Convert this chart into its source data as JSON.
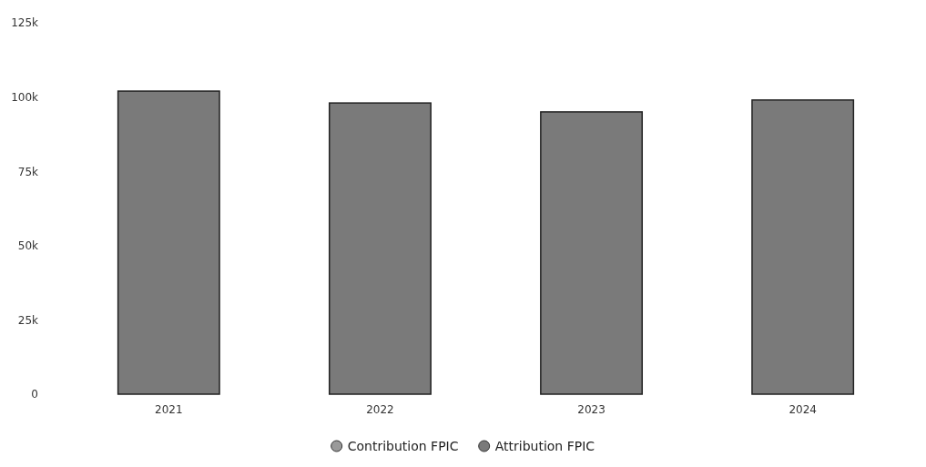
{
  "chart_data": {
    "type": "bar",
    "categories": [
      "2021",
      "2022",
      "2023",
      "2024"
    ],
    "series": [
      {
        "name": "Contribution FPIC",
        "color": "#9a9a9a",
        "values": [
          null,
          null,
          null,
          null
        ]
      },
      {
        "name": "Attribution FPIC",
        "color": "#7a7a7a",
        "values": [
          102000,
          98000,
          95000,
          99000
        ]
      }
    ],
    "ylim": [
      0,
      125000
    ],
    "yticks": [
      {
        "value": 0,
        "label": "0"
      },
      {
        "value": 25000,
        "label": "25k"
      },
      {
        "value": 50000,
        "label": "50k"
      },
      {
        "value": 75000,
        "label": "75k"
      },
      {
        "value": 100000,
        "label": "100k"
      },
      {
        "value": 125000,
        "label": "125k"
      }
    ],
    "grid": false,
    "legend": "bottom"
  }
}
